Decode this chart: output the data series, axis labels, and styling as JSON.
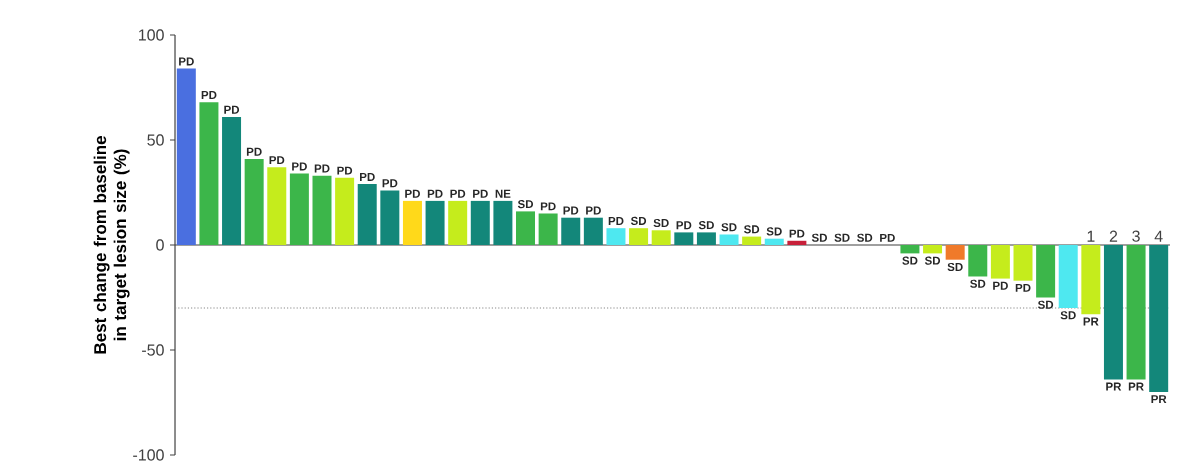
{
  "chart_data": {
    "type": "bar",
    "ylabel": "Best change from baseline in target lesion size (%)",
    "categories": [
      null,
      null,
      null,
      null,
      null,
      null,
      null,
      null,
      null,
      null,
      null,
      null,
      null,
      null,
      null,
      null,
      null,
      null,
      null,
      null,
      null,
      null,
      null,
      null,
      null,
      null,
      null,
      null,
      null,
      null,
      null,
      null,
      null,
      null,
      null,
      null,
      null,
      null,
      null,
      null,
      "1",
      "2",
      "3",
      "4"
    ],
    "values": [
      84,
      68,
      61,
      41,
      37,
      34,
      33,
      32,
      29,
      26,
      21,
      21,
      21,
      21,
      21,
      16,
      15,
      13,
      13,
      8,
      8,
      7,
      6,
      6,
      5,
      4,
      3,
      2,
      0,
      0,
      0,
      0,
      -4,
      -4,
      -7,
      -15,
      -16,
      -17,
      -25,
      -30,
      -33,
      -64,
      -64,
      -70
    ],
    "colors": [
      "#4a6fe0",
      "#3cb64a",
      "#13877a",
      "#3cb64a",
      "#c5ec1c",
      "#3cb64a",
      "#3cb64a",
      "#c5ec1c",
      "#13877a",
      "#13877a",
      "#ffd91a",
      "#13877a",
      "#c5ec1c",
      "#13877a",
      "#13877a",
      "#3cb64a",
      "#3cb64a",
      "#13877a",
      "#13877a",
      "#4ee8f0",
      "#c5ec1c",
      "#c5ec1c",
      "#13877a",
      "#13877a",
      "#4ee8f0",
      "#c5ec1c",
      "#4ee8f0",
      "#c8203a",
      "#13877a",
      "#13877a",
      "#13877a",
      "#13877a",
      "#3cb64a",
      "#c5ec1c",
      "#f07a2a",
      "#3cb64a",
      "#c5ec1c",
      "#c5ec1c",
      "#3cb64a",
      "#4ee8f0",
      "#c5ec1c",
      "#13877a",
      "#3cb64a",
      "#13877a"
    ],
    "value_labels": [
      "PD",
      "PD",
      "PD",
      "PD",
      "PD",
      "PD",
      "PD",
      "PD",
      "PD",
      "PD",
      "PD",
      "PD",
      "PD",
      "PD",
      "NE",
      "SD",
      "PD",
      "PD",
      "PD",
      "PD",
      "SD",
      "SD",
      "PD",
      "SD",
      "SD",
      "SD",
      "SD",
      "PD",
      "SD",
      "SD",
      "SD",
      "PD",
      "SD",
      "SD",
      "SD",
      "SD",
      "PD",
      "PD",
      "SD",
      "SD",
      "PR",
      "PR",
      "PR",
      "PR"
    ],
    "ylim": [
      -100,
      100
    ],
    "yticks": [
      -100,
      -50,
      0,
      50,
      100
    ],
    "ref_lines": [
      {
        "axis": "y",
        "value": -30,
        "color": "#888888",
        "line_style": "dotted"
      }
    ]
  }
}
